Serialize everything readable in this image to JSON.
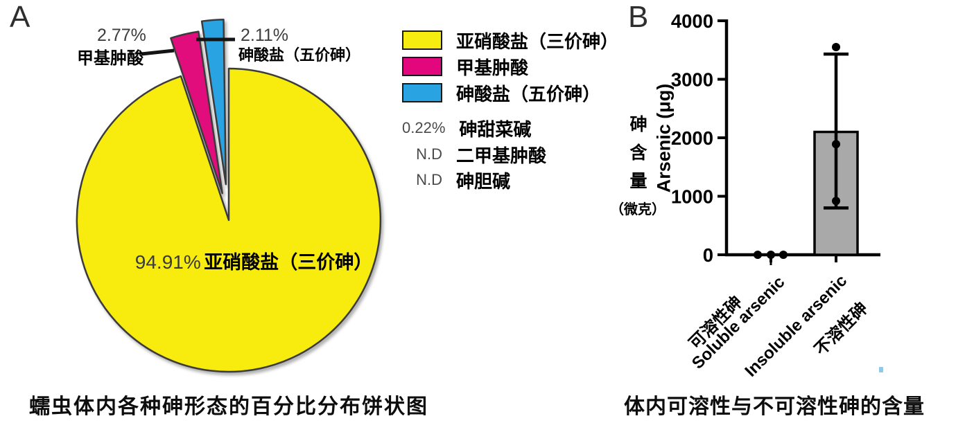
{
  "panel_a": {
    "panel_label": "A",
    "caption": "蠕虫体内各种砷形态的百分比分布饼状图",
    "callout_left": {
      "percent": "2.77%",
      "name": "甲基肿酸"
    },
    "callout_right": {
      "percent": "2.11%",
      "name": "砷酸盐（五价砷）"
    },
    "inner_label": {
      "percent": "94.91%",
      "name": "亚硝酸盐（三价砷）"
    },
    "legend": [
      {
        "swatch": "#F7EC0F",
        "label": "亚硝酸盐（三价砷）"
      },
      {
        "swatch": "#E2077D",
        "label": "甲基肿酸"
      },
      {
        "swatch": "#2AA3E3",
        "label": "砷酸盐（五价砷）"
      },
      {
        "prefix": "0.22%",
        "label": "砷甜菜碱"
      },
      {
        "prefix": "N.D",
        "label": "二甲基肿酸"
      },
      {
        "prefix": "N.D",
        "label": "砷胆碱"
      }
    ]
  },
  "panel_b": {
    "panel_label": "B",
    "caption": "体内可溶性与不可溶性砷的含量",
    "ylabel_en": "Arsenic (μg)",
    "ylabel_zh": "砷含量（微克）"
  },
  "chart_data": [
    {
      "type": "pie",
      "title": "蠕虫体内各种砷形态的百分比分布饼状图",
      "slices": [
        {
          "label": "亚硝酸盐（三价砷）",
          "percent": 94.91,
          "color": "#F7EC0F",
          "exploded": false
        },
        {
          "label": "甲基肿酸",
          "percent": 2.77,
          "color": "#E2077D",
          "exploded": true
        },
        {
          "label": "砷酸盐（五价砷）",
          "percent": 2.11,
          "color": "#2AA3E3",
          "exploded": true
        },
        {
          "label": "砷甜菜碱",
          "percent": 0.22,
          "color": null,
          "exploded": false
        },
        {
          "label": "二甲基肿酸",
          "percent": null,
          "note": "N.D",
          "color": null,
          "exploded": false
        },
        {
          "label": "砷胆碱",
          "percent": null,
          "note": "N.D",
          "color": null,
          "exploded": false
        }
      ]
    },
    {
      "type": "bar",
      "title": "体内可溶性与不可溶性砷的含量",
      "ylabel": "Arsenic (μg)",
      "ylabel_zh": "砷含量（微克）",
      "ylim": [
        0,
        4000
      ],
      "yticks": [
        0,
        1000,
        2000,
        3000,
        4000
      ],
      "categories": [
        {
          "en": "Soluble arsenic",
          "zh": "可溶性砷"
        },
        {
          "en": "Insoluble arsenic",
          "zh": "不溶性砷"
        }
      ],
      "bar_values": [
        0,
        2100
      ],
      "error_low": [
        0,
        800
      ],
      "error_high": [
        0,
        3430
      ],
      "points": [
        [
          0,
          0,
          0
        ],
        [
          920,
          1890,
          3550
        ]
      ],
      "bar_color": "#A9A9A9"
    }
  ]
}
